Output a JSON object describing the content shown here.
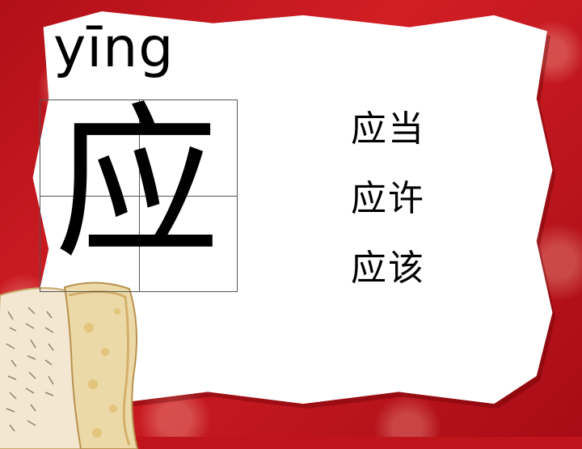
{
  "lesson": {
    "pinyin": "yīng",
    "character": "应",
    "words": [
      "应当",
      "应许",
      "应该"
    ]
  },
  "colors": {
    "background": "#c0141c",
    "paper": "#ffffff",
    "text": "#000000"
  }
}
